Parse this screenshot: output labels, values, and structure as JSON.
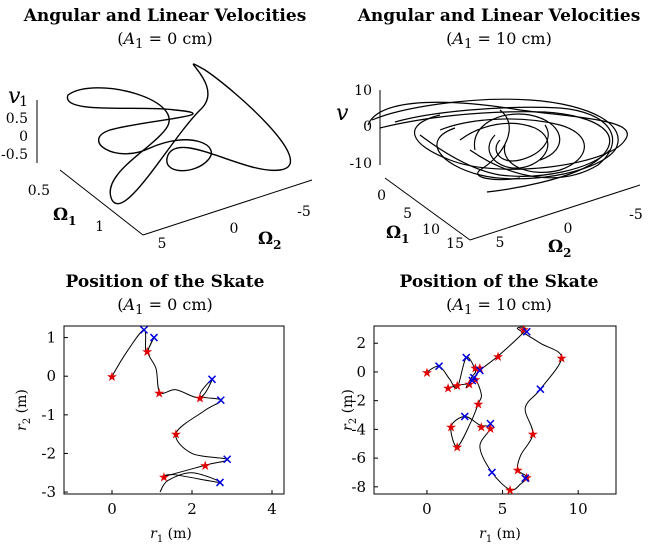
{
  "chart_data": [
    {
      "type": "3d-line",
      "title": "Angular and Linear Velocities",
      "subtitle": {
        "var": "A",
        "sub": "1",
        "rest": " = 0 cm)"
      },
      "subtitle_prefix": "(",
      "axes": {
        "z_label": "v",
        "y_label": "Ω",
        "y_sub": "1",
        "x_label": "Ω",
        "x_sub": "2"
      },
      "z_ticks": [
        "1",
        "0.5",
        "0",
        "-0.5"
      ],
      "y_ticks": [
        "0.5",
        "1"
      ],
      "x_ticks": [
        "5",
        "0",
        "-5"
      ]
    },
    {
      "type": "3d-line",
      "title": "Angular and Linear Velocities",
      "subtitle": {
        "var": "A",
        "sub": "1",
        "rest": " = 10 cm)"
      },
      "subtitle_prefix": "(",
      "axes": {
        "z_label": "v",
        "y_label": "Ω",
        "y_sub": "1",
        "x_label": "Ω",
        "x_sub": "2"
      },
      "z_ticks": [
        "10",
        "0",
        "-10"
      ],
      "y_ticks": [
        "0",
        "5",
        "10",
        "15"
      ],
      "x_ticks": [
        "5",
        "0",
        "-5"
      ]
    },
    {
      "type": "line",
      "title": "Position of the Skate",
      "subtitle": {
        "var": "A",
        "sub": "1",
        "rest": " = 0 cm)"
      },
      "subtitle_prefix": "(",
      "xlabel": {
        "var": "r",
        "sub": "1",
        "unit": " (m)"
      },
      "ylabel": {
        "var": "r",
        "sub": "2",
        "unit": " (m)"
      },
      "xlim": [
        -1.2,
        4.3
      ],
      "ylim": [
        -3.05,
        1.3
      ],
      "xticks": [
        0,
        2,
        4
      ],
      "yticks": [
        1,
        0,
        -1,
        -2,
        -3
      ],
      "path": [
        [
          0,
          0
        ],
        [
          0.35,
          0.6
        ],
        [
          0.8,
          1.2
        ],
        [
          0.85,
          0.65
        ],
        [
          1.05,
          1.0
        ],
        [
          0.9,
          0.62
        ],
        [
          1.1,
          0.2
        ],
        [
          1.2,
          -0.42
        ],
        [
          1.6,
          -0.35
        ],
        [
          2.2,
          -0.55
        ],
        [
          2.5,
          -0.08
        ],
        [
          2.2,
          -0.5
        ],
        [
          2.72,
          -0.62
        ],
        [
          2.3,
          -0.9
        ],
        [
          1.6,
          -1.48
        ],
        [
          2.0,
          -2.0
        ],
        [
          2.88,
          -2.15
        ],
        [
          2.35,
          -2.3
        ],
        [
          1.3,
          -2.6
        ],
        [
          1.55,
          -2.55
        ],
        [
          2.7,
          -2.75
        ],
        [
          2.0,
          -2.5
        ],
        [
          1.4,
          -2.7
        ],
        [
          1.2,
          -3.0
        ]
      ],
      "red_markers": [
        [
          0,
          0
        ],
        [
          0.88,
          0.65
        ],
        [
          1.18,
          -0.42
        ],
        [
          2.2,
          -0.55
        ],
        [
          1.6,
          -1.48
        ],
        [
          2.33,
          -2.3
        ],
        [
          1.3,
          -2.6
        ]
      ],
      "blue_markers": [
        [
          0.8,
          1.2
        ],
        [
          1.05,
          1.0
        ],
        [
          2.5,
          -0.08
        ],
        [
          2.72,
          -0.62
        ],
        [
          2.88,
          -2.15
        ],
        [
          2.7,
          -2.75
        ]
      ]
    },
    {
      "type": "line",
      "title": "Position of the Skate",
      "subtitle": {
        "var": "A",
        "sub": "1",
        "rest": " = 10 cm)"
      },
      "subtitle_prefix": "(",
      "xlabel": {
        "var": "r",
        "sub": "1",
        "unit": " (m)"
      },
      "ylabel": {
        "var": "r",
        "sub": "2",
        "unit": " (m)"
      },
      "xlim": [
        -3.5,
        12.5
      ],
      "ylim": [
        -8.5,
        3.2
      ],
      "xticks": [
        0,
        5,
        10
      ],
      "yticks": [
        2,
        0,
        -2,
        -4,
        -6,
        -8
      ],
      "path": [
        [
          0,
          0
        ],
        [
          0.8,
          0.4
        ],
        [
          1.5,
          -0.5
        ],
        [
          2.0,
          -1.1
        ],
        [
          2.6,
          1.0
        ],
        [
          3.2,
          0.1
        ],
        [
          3.0,
          -0.3
        ],
        [
          2.6,
          -1.1
        ],
        [
          3.5,
          0.1
        ],
        [
          4.7,
          1.1
        ],
        [
          6.5,
          2.9
        ],
        [
          6.0,
          3.0
        ],
        [
          7.5,
          2.0
        ],
        [
          8.9,
          1.0
        ],
        [
          7.5,
          -1.2
        ],
        [
          6.5,
          -2.5
        ],
        [
          7.0,
          -4.3
        ],
        [
          6.2,
          -5.8
        ],
        [
          6.0,
          -6.8
        ],
        [
          6.6,
          -7.3
        ],
        [
          6.2,
          -7.8
        ],
        [
          5.5,
          -8.2
        ],
        [
          4.3,
          -7.0
        ],
        [
          3.5,
          -5.2
        ],
        [
          4.2,
          -3.9
        ],
        [
          3.5,
          -3.7
        ],
        [
          2.5,
          -3.1
        ],
        [
          1.6,
          -3.8
        ],
        [
          2.0,
          -5.2
        ],
        [
          2.9,
          -3.5
        ],
        [
          3.4,
          -2.2
        ],
        [
          3.6,
          -1.6
        ],
        [
          3.2,
          -0.5
        ],
        [
          2.8,
          -0.8
        ],
        [
          2.2,
          -0.9
        ],
        [
          1.4,
          -1.1
        ]
      ],
      "red_markers": [
        [
          0,
          0
        ],
        [
          1.4,
          -1.1
        ],
        [
          2.0,
          -0.9
        ],
        [
          2.8,
          -0.8
        ],
        [
          3.2,
          -0.5
        ],
        [
          3.2,
          0.3
        ],
        [
          3.5,
          0.3
        ],
        [
          4.7,
          1.1
        ],
        [
          6.4,
          3.0
        ],
        [
          8.9,
          1.0
        ],
        [
          7.0,
          -4.3
        ],
        [
          3.4,
          -2.2
        ],
        [
          3.6,
          -3.8
        ],
        [
          4.2,
          -3.9
        ],
        [
          1.6,
          -3.8
        ],
        [
          2.0,
          -5.2
        ],
        [
          6.0,
          -6.8
        ],
        [
          6.6,
          -7.3
        ],
        [
          5.5,
          -8.2
        ]
      ],
      "blue_markers": [
        [
          0.8,
          0.4
        ],
        [
          2.6,
          1.0
        ],
        [
          3.1,
          -0.4
        ],
        [
          3.5,
          0.1
        ],
        [
          3.0,
          -0.6
        ],
        [
          6.6,
          2.8
        ],
        [
          7.5,
          -1.2
        ],
        [
          2.5,
          -3.1
        ],
        [
          4.2,
          -3.6
        ],
        [
          4.3,
          -7.0
        ],
        [
          6.5,
          -7.4
        ]
      ]
    }
  ]
}
